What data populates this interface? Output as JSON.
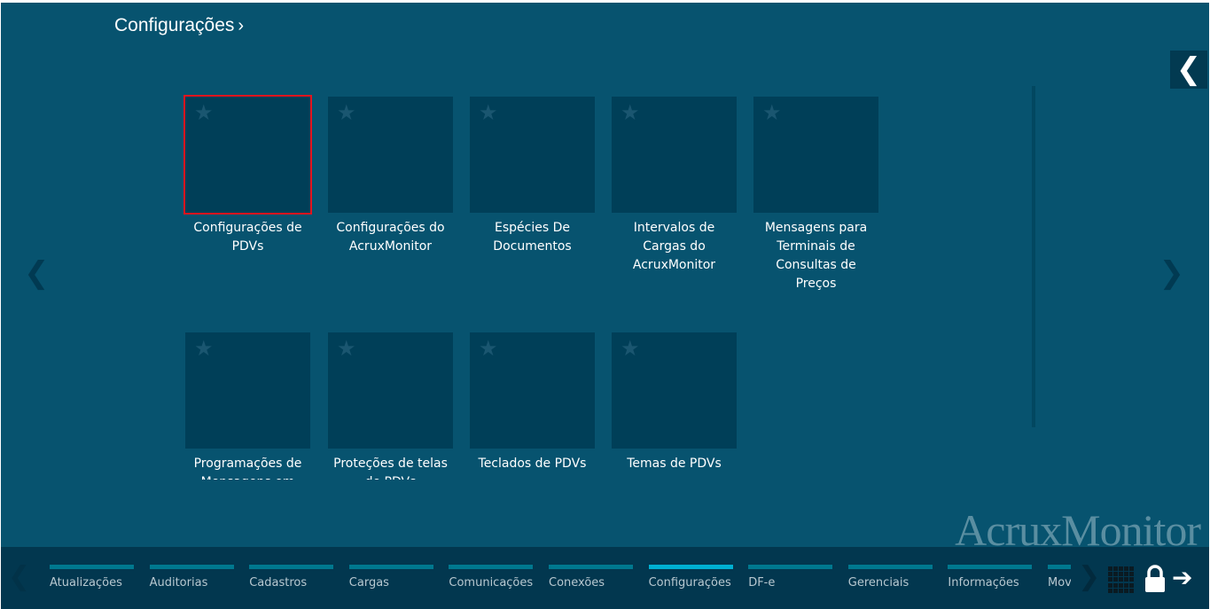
{
  "header": {
    "title": "Configurações",
    "chevron": "›"
  },
  "side_toggle": {
    "icon": "chevron-left-icon",
    "glyph": "❮"
  },
  "nav": {
    "prev": "❮",
    "next": "❯"
  },
  "tiles": [
    {
      "label": "Configurações de PDVs",
      "favorite": false,
      "selected": true
    },
    {
      "label": "Configurações do AcruxMonitor",
      "favorite": false
    },
    {
      "label": "Espécies De Documentos",
      "favorite": false
    },
    {
      "label": "Intervalos de Cargas do AcruxMonitor",
      "favorite": false
    },
    {
      "label": "Mensagens para Terminais de Consultas de Preços",
      "favorite": false
    },
    {
      "label": "Programações de Mensagens em",
      "favorite": false
    },
    {
      "label": "Proteções de telas de PDVs",
      "favorite": false
    },
    {
      "label": "Teclados de PDVs",
      "favorite": false
    },
    {
      "label": "Temas de PDVs",
      "favorite": false
    }
  ],
  "logo": "AcruxMonitor",
  "bottom": {
    "tabs": [
      "Atualizações",
      "Auditorias",
      "Cadastros",
      "Cargas",
      "Comunicações",
      "Conexões",
      "Configurações",
      "DF-e",
      "Gerenciais",
      "Informações",
      "Mov"
    ],
    "active_tab": "Configurações",
    "left_arrow": "❮",
    "right_arrow": "❯",
    "exit_glyph": "➔"
  },
  "colors": {
    "background": "#07536f",
    "tile": "#003f58",
    "bottom_bar": "#02374f",
    "tab_bar": "#00788f",
    "active_tab_bar": "#00b0d2",
    "selection": "#e3141e"
  }
}
